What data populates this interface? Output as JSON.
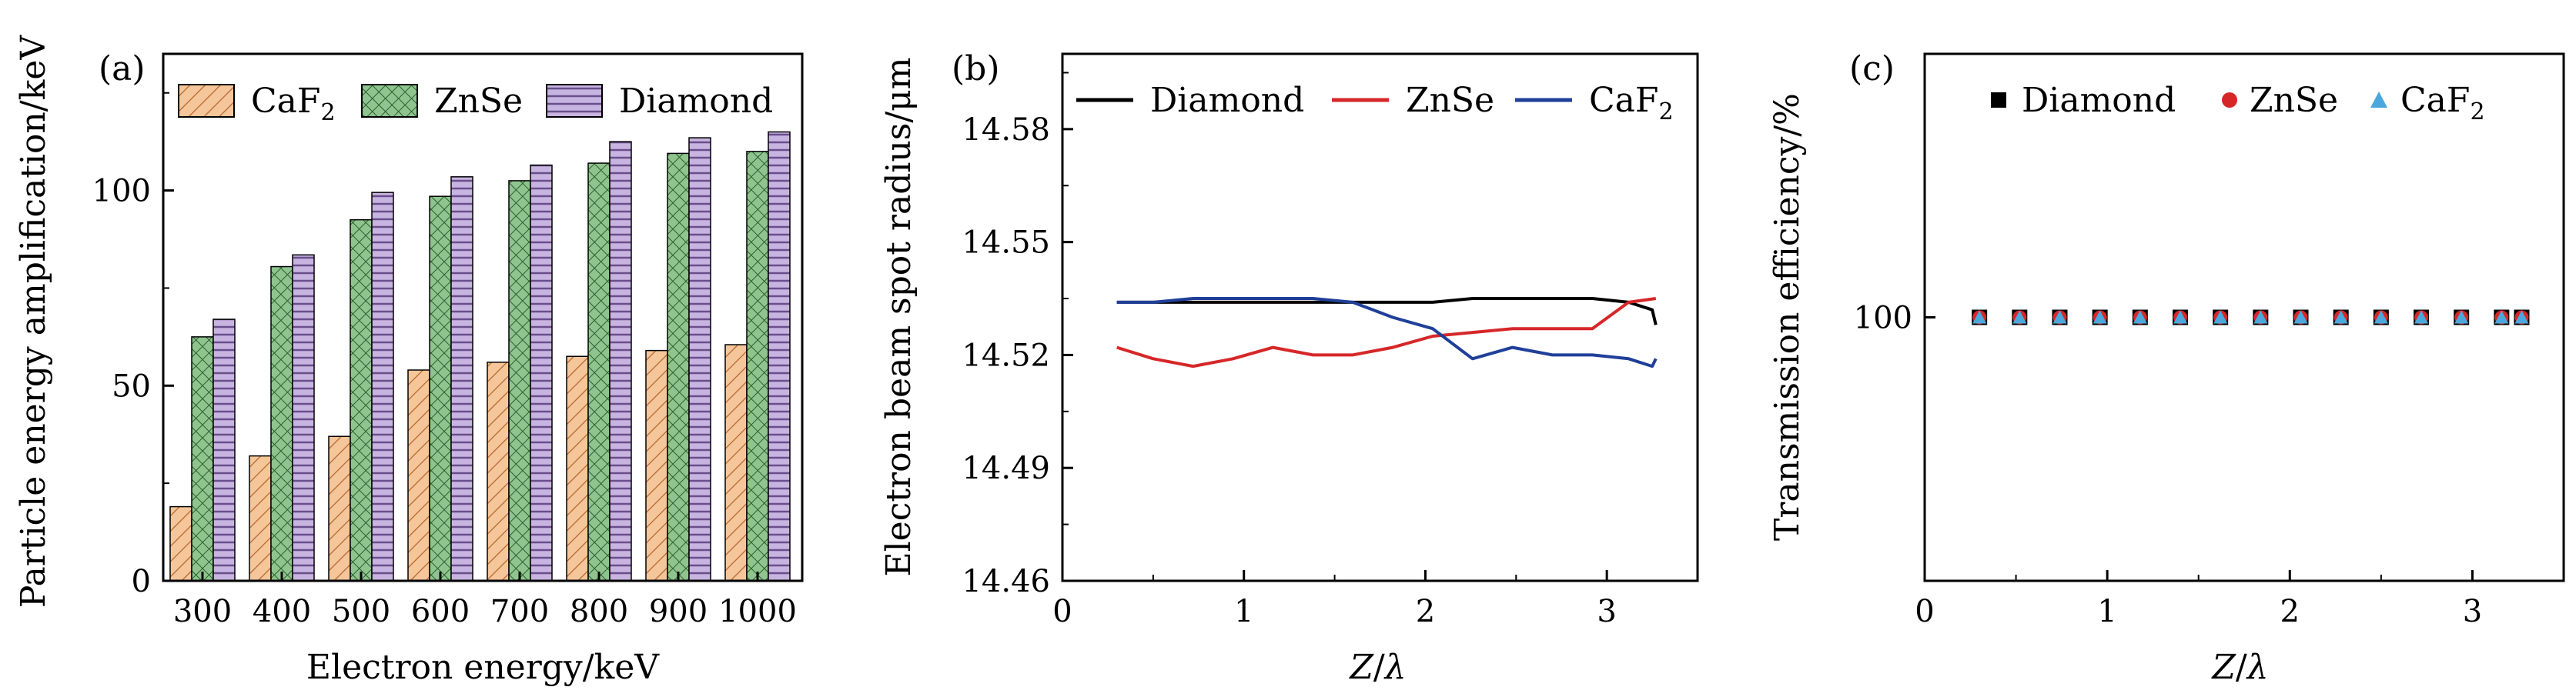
{
  "chart_data": [
    {
      "type": "bar",
      "panel_label": "(a)",
      "xlabel": "Electron energy/keV",
      "ylabel": "Particle energy amplification/keV",
      "categories": [
        "300",
        "400",
        "500",
        "600",
        "700",
        "800",
        "900",
        "1000"
      ],
      "ylim": [
        0,
        135
      ],
      "yticks": [
        0,
        50,
        100
      ],
      "legend_position": "top",
      "series": [
        {
          "name": "CaF2",
          "name_main": "CaF",
          "name_sub": "2",
          "color": "#f5c69a",
          "hatch": "diagonal",
          "values": [
            19,
            32,
            37,
            54,
            56,
            57.5,
            59,
            60.5
          ]
        },
        {
          "name": "ZnSe",
          "color": "#8fc48f",
          "hatch": "crosshatch",
          "values": [
            62.5,
            80.5,
            92.5,
            98.5,
            102.5,
            107,
            109.5,
            110
          ]
        },
        {
          "name": "Diamond",
          "color": "#c8b4e0",
          "hatch": "horizontal",
          "values": [
            67,
            83.5,
            99.5,
            103.5,
            106.5,
            112.5,
            113.5,
            115
          ]
        }
      ]
    },
    {
      "type": "line",
      "panel_label": "(b)",
      "xlabel_main": "Z",
      "xlabel_sep": "/",
      "xlabel_lambda": "λ",
      "ylabel": "Electron beam spot radius/μm",
      "xlim": [
        0,
        3.5
      ],
      "xticks": [
        0,
        1,
        2,
        3
      ],
      "ylim": [
        14.46,
        14.6
      ],
      "yticks": [
        "14.46",
        "14.49",
        "14.52",
        "14.55",
        "14.58"
      ],
      "legend_position": "top",
      "series": [
        {
          "name": "Diamond",
          "color": "#000000",
          "x": [
            0.3,
            0.5,
            0.72,
            0.94,
            1.16,
            1.38,
            1.6,
            1.82,
            2.04,
            2.26,
            2.48,
            2.7,
            2.92,
            3.12,
            3.25,
            3.27
          ],
          "y": [
            14.534,
            14.534,
            14.534,
            14.534,
            14.534,
            14.534,
            14.534,
            14.534,
            14.534,
            14.535,
            14.535,
            14.535,
            14.535,
            14.534,
            14.532,
            14.528
          ]
        },
        {
          "name": "ZnSe",
          "color": "#d62728",
          "x": [
            0.3,
            0.5,
            0.72,
            0.94,
            1.16,
            1.38,
            1.6,
            1.82,
            2.04,
            2.26,
            2.48,
            2.7,
            2.92,
            3.12,
            3.27
          ],
          "y": [
            14.522,
            14.519,
            14.517,
            14.519,
            14.522,
            14.52,
            14.52,
            14.522,
            14.525,
            14.526,
            14.527,
            14.527,
            14.527,
            14.534,
            14.535
          ]
        },
        {
          "name": "CaF2",
          "name_main": "CaF",
          "name_sub": "2",
          "color": "#1f3f99",
          "x": [
            0.3,
            0.5,
            0.72,
            0.94,
            1.16,
            1.38,
            1.6,
            1.82,
            2.04,
            2.26,
            2.48,
            2.7,
            2.92,
            3.12,
            3.25,
            3.27
          ],
          "y": [
            14.534,
            14.534,
            14.535,
            14.535,
            14.535,
            14.535,
            14.534,
            14.53,
            14.527,
            14.519,
            14.522,
            14.52,
            14.52,
            14.519,
            14.517,
            14.519
          ]
        }
      ]
    },
    {
      "type": "scatter",
      "panel_label": "(c)",
      "xlabel_main": "Z",
      "xlabel_sep": "/",
      "xlabel_lambda": "λ",
      "ylabel": "Transmission efficiency/%",
      "xlim": [
        0,
        3.5
      ],
      "xticks": [
        0,
        1,
        2,
        3
      ],
      "ylim": [
        50,
        150
      ],
      "yticks": [
        "100"
      ],
      "legend_position": "top",
      "series": [
        {
          "name": "Diamond",
          "marker": "square",
          "color": "#000000",
          "x": [
            0.3,
            0.52,
            0.74,
            0.96,
            1.18,
            1.4,
            1.62,
            1.84,
            2.06,
            2.28,
            2.5,
            2.72,
            2.94,
            3.16,
            3.27
          ],
          "y": [
            100,
            100,
            100,
            100,
            100,
            100,
            100,
            100,
            100,
            100,
            100,
            100,
            100,
            100,
            100
          ]
        },
        {
          "name": "ZnSe",
          "marker": "circle",
          "color": "#d62728",
          "x": [
            0.3,
            0.52,
            0.74,
            0.96,
            1.18,
            1.4,
            1.62,
            1.84,
            2.06,
            2.28,
            2.5,
            2.72,
            2.94,
            3.16,
            3.27
          ],
          "y": [
            100,
            100,
            100,
            100,
            100,
            100,
            100,
            100,
            100,
            100,
            100,
            100,
            100,
            100,
            100
          ]
        },
        {
          "name": "CaF2",
          "name_main": "CaF",
          "name_sub": "2",
          "marker": "triangle",
          "color": "#4aa8dd",
          "x": [
            0.3,
            0.52,
            0.74,
            0.96,
            1.18,
            1.4,
            1.62,
            1.84,
            2.06,
            2.28,
            2.5,
            2.72,
            2.94,
            3.16,
            3.27
          ],
          "y": [
            100,
            100,
            100,
            100,
            100,
            100,
            100,
            100,
            100,
            100,
            100,
            100,
            100,
            100,
            100
          ]
        }
      ]
    }
  ]
}
